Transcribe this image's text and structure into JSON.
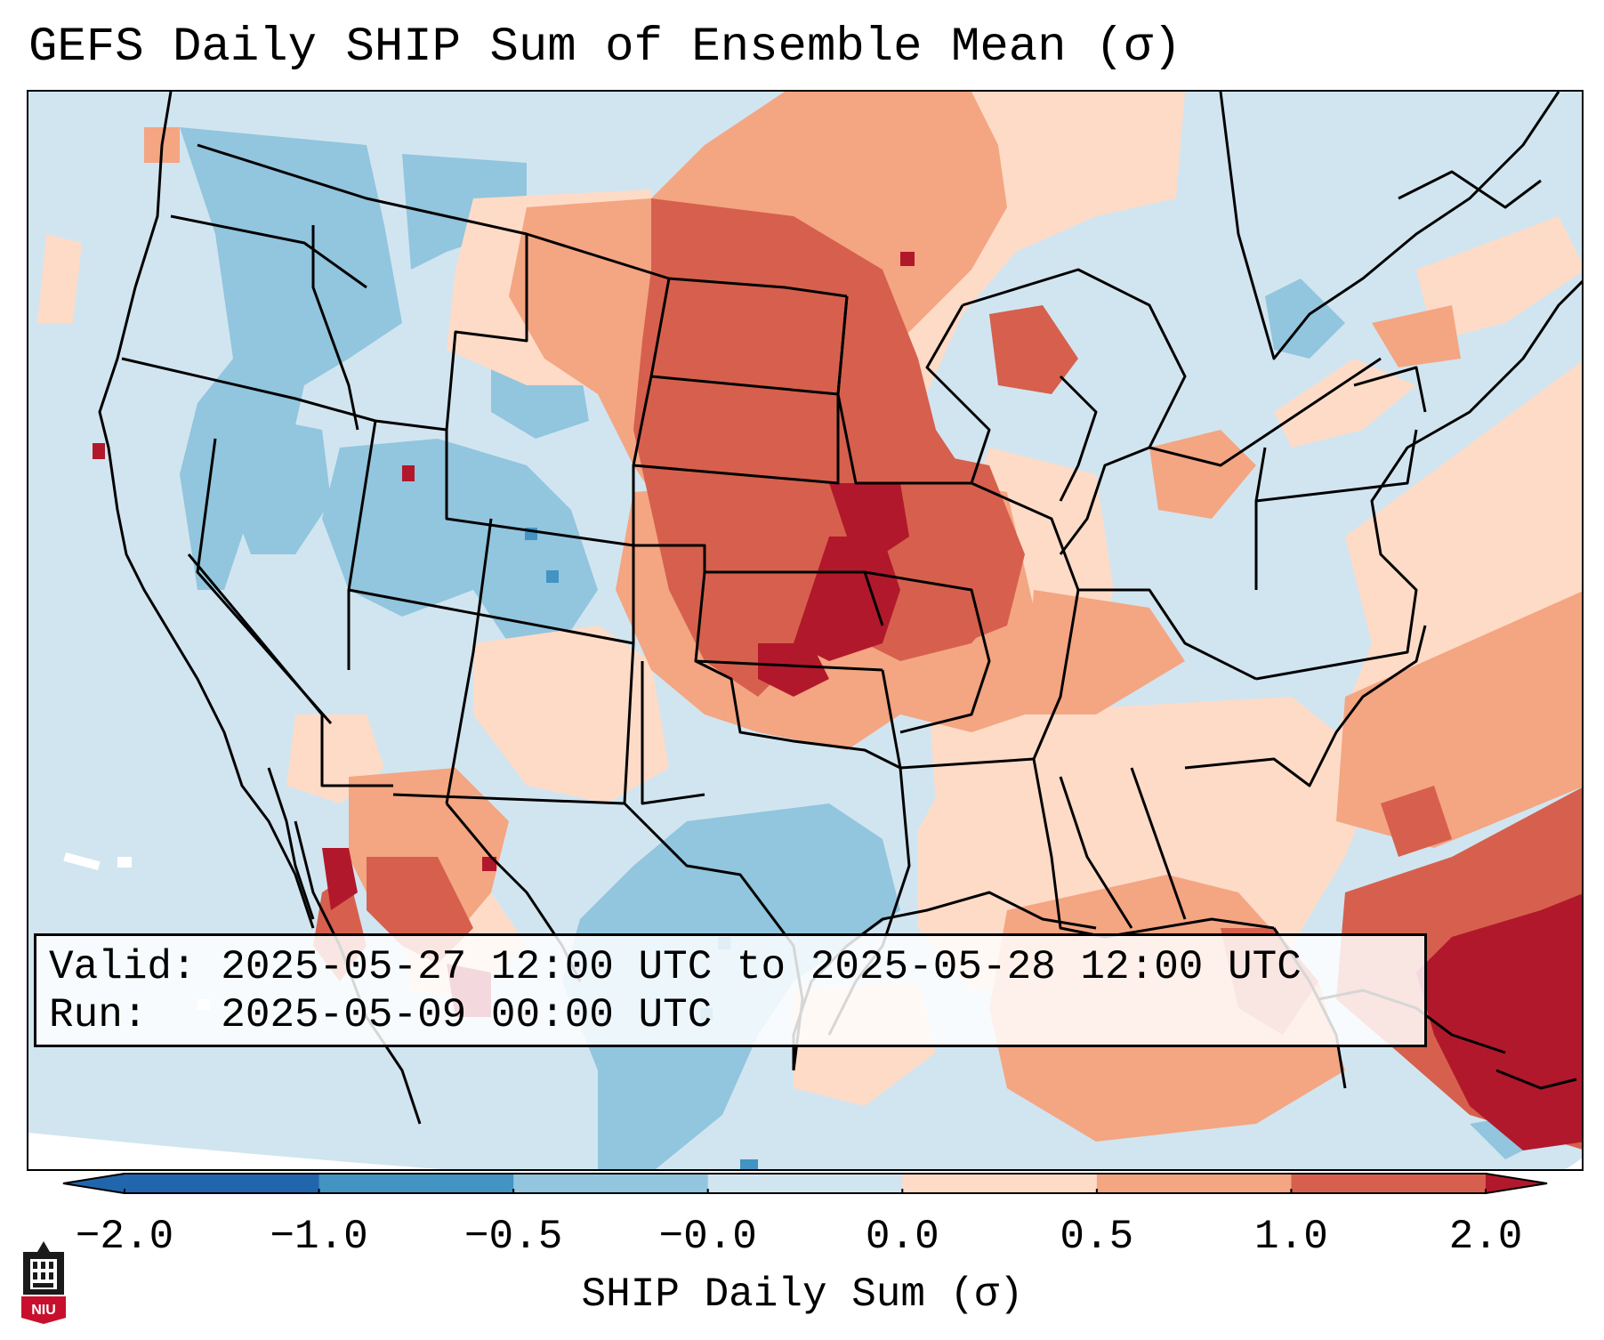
{
  "title": "GEFS Daily SHIP Sum of Ensemble Mean (σ)",
  "map_info": {
    "valid_line": "Valid: 2025-05-27 12:00 UTC to 2025-05-28 12:00 UTC",
    "run_line": "Run:   2025-05-09 00:00 UTC"
  },
  "colorbar": {
    "label": "SHIP Daily Sum (σ)",
    "ticks": [
      "−2.0",
      "−1.0",
      "−0.5",
      "−0.0",
      "0.0",
      "0.5",
      "1.0",
      "2.0"
    ],
    "colors": {
      "under": "#2166ac",
      "bins": [
        "#4393c3",
        "#92c5de",
        "#d1e5f0",
        "#fddbc7",
        "#f4a582",
        "#d6604d"
      ],
      "over": "#b2182b"
    }
  },
  "logo": {
    "text": "NIU",
    "icon": "niu-logo-icon"
  }
}
